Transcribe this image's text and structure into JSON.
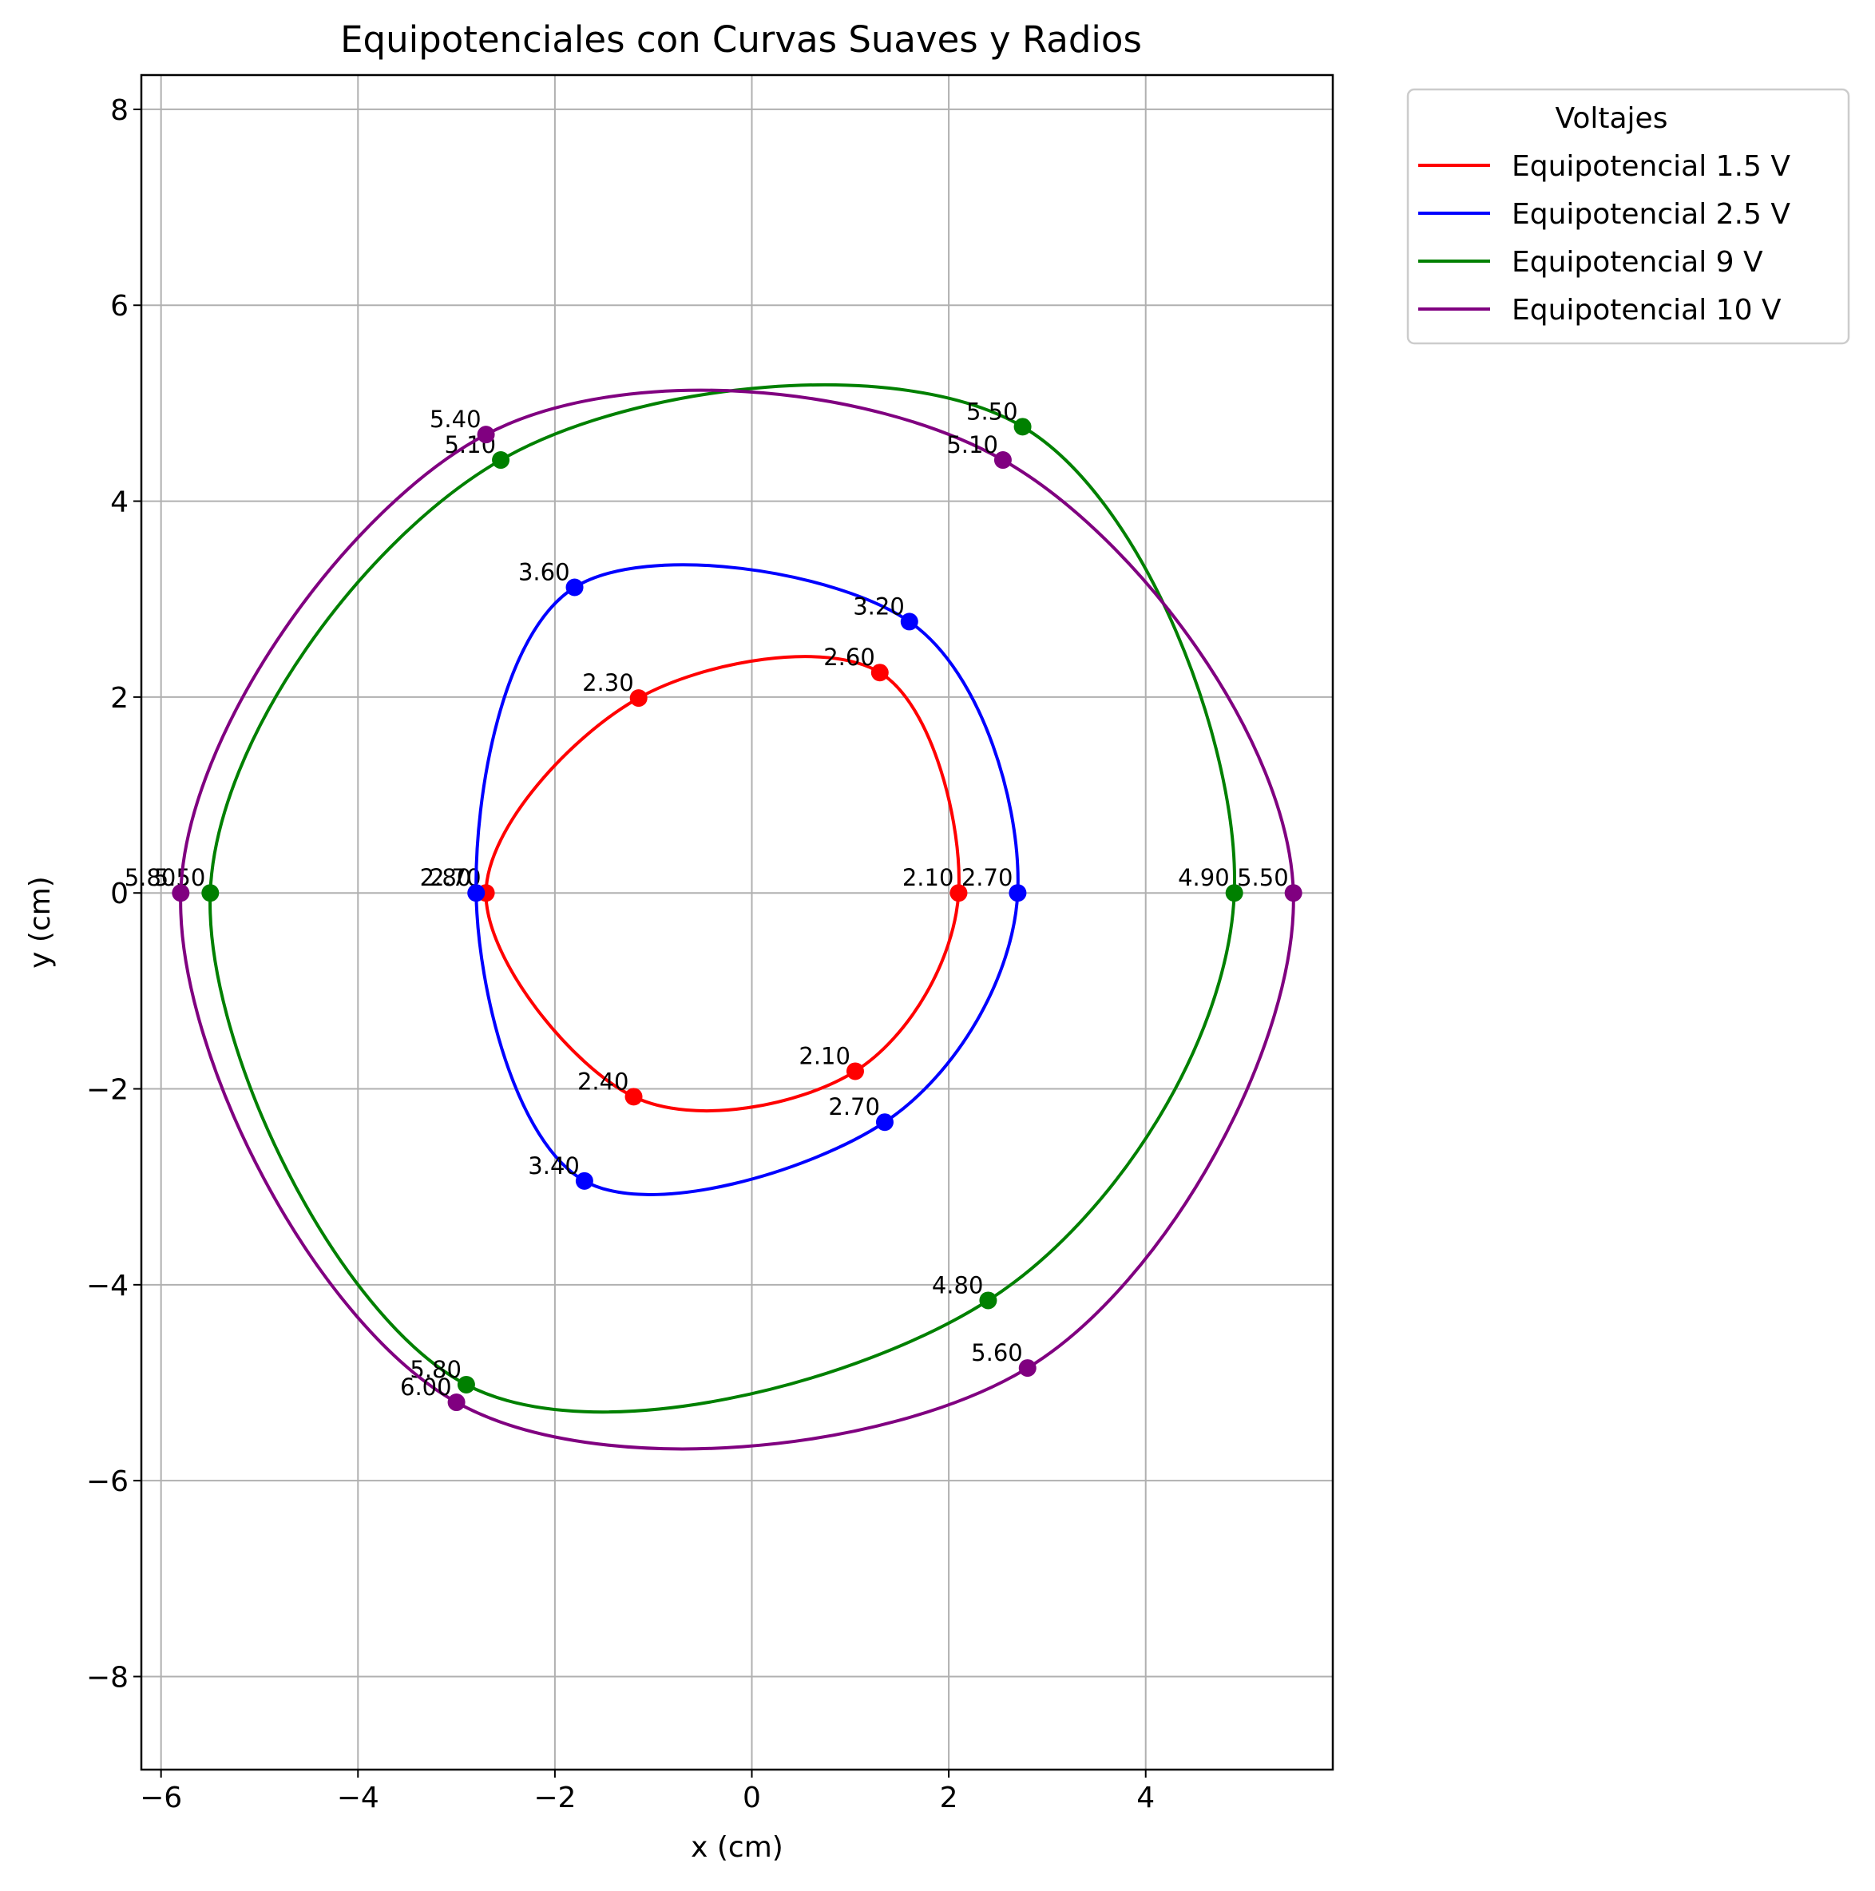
{
  "chart_data": {
    "type": "line",
    "title": "Equipotenciales con Curvas Suaves y Radios",
    "xlabel": "x (cm)",
    "ylabel": "y (cm)",
    "xlim": [
      -6.2,
      5.9
    ],
    "ylim": [
      -8.95,
      8.35
    ],
    "xticks": [
      -6,
      -4,
      -2,
      0,
      2,
      4
    ],
    "yticks": [
      -8,
      -6,
      -4,
      -2,
      0,
      2,
      4,
      6,
      8
    ],
    "grid": true,
    "legend": {
      "title": "Voltajes",
      "placement": "outside-top-right"
    },
    "series": [
      {
        "name": "Equipotencial 1.5 V",
        "color": "#ff0000",
        "closed": true,
        "points": [
          {
            "x": 2.1,
            "y": 0.0,
            "label": "2.10"
          },
          {
            "x": 1.3,
            "y": 2.25,
            "label": "2.60"
          },
          {
            "x": -1.15,
            "y": 1.99,
            "label": "2.30"
          },
          {
            "x": -2.7,
            "y": 0.0,
            "label": "2.70"
          },
          {
            "x": -1.2,
            "y": -2.08,
            "label": "2.40"
          },
          {
            "x": 1.05,
            "y": -1.82,
            "label": "2.10"
          }
        ]
      },
      {
        "name": "Equipotencial 2.5 V",
        "color": "#0000ff",
        "closed": true,
        "points": [
          {
            "x": 2.7,
            "y": 0.0,
            "label": "2.70"
          },
          {
            "x": 1.6,
            "y": 2.77,
            "label": "3.20"
          },
          {
            "x": -1.8,
            "y": 3.12,
            "label": "3.60"
          },
          {
            "x": -2.8,
            "y": 0.0,
            "label": "2.80"
          },
          {
            "x": -1.7,
            "y": -2.94,
            "label": "3.40"
          },
          {
            "x": 1.35,
            "y": -2.34,
            "label": "2.70"
          }
        ]
      },
      {
        "name": "Equipotencial 9 V",
        "color": "#008000",
        "closed": true,
        "points": [
          {
            "x": 4.9,
            "y": 0.0,
            "label": "4.90"
          },
          {
            "x": 2.75,
            "y": 4.76,
            "label": "5.50"
          },
          {
            "x": -2.55,
            "y": 4.42,
            "label": "5.10"
          },
          {
            "x": -5.5,
            "y": 0.0,
            "label": "5.50"
          },
          {
            "x": -2.9,
            "y": -5.02,
            "label": "5.80"
          },
          {
            "x": 2.4,
            "y": -4.16,
            "label": "4.80"
          }
        ]
      },
      {
        "name": "Equipotencial 10 V",
        "color": "#800080",
        "closed": true,
        "points": [
          {
            "x": 5.5,
            "y": 0.0,
            "label": "5.50"
          },
          {
            "x": 2.55,
            "y": 4.42,
            "label": "5.10"
          },
          {
            "x": -2.7,
            "y": 4.68,
            "label": "5.40"
          },
          {
            "x": -5.8,
            "y": 0.0,
            "label": "5.80"
          },
          {
            "x": -3.0,
            "y": -5.2,
            "label": "6.00"
          },
          {
            "x": 2.8,
            "y": -4.85,
            "label": "5.60"
          }
        ]
      }
    ]
  }
}
